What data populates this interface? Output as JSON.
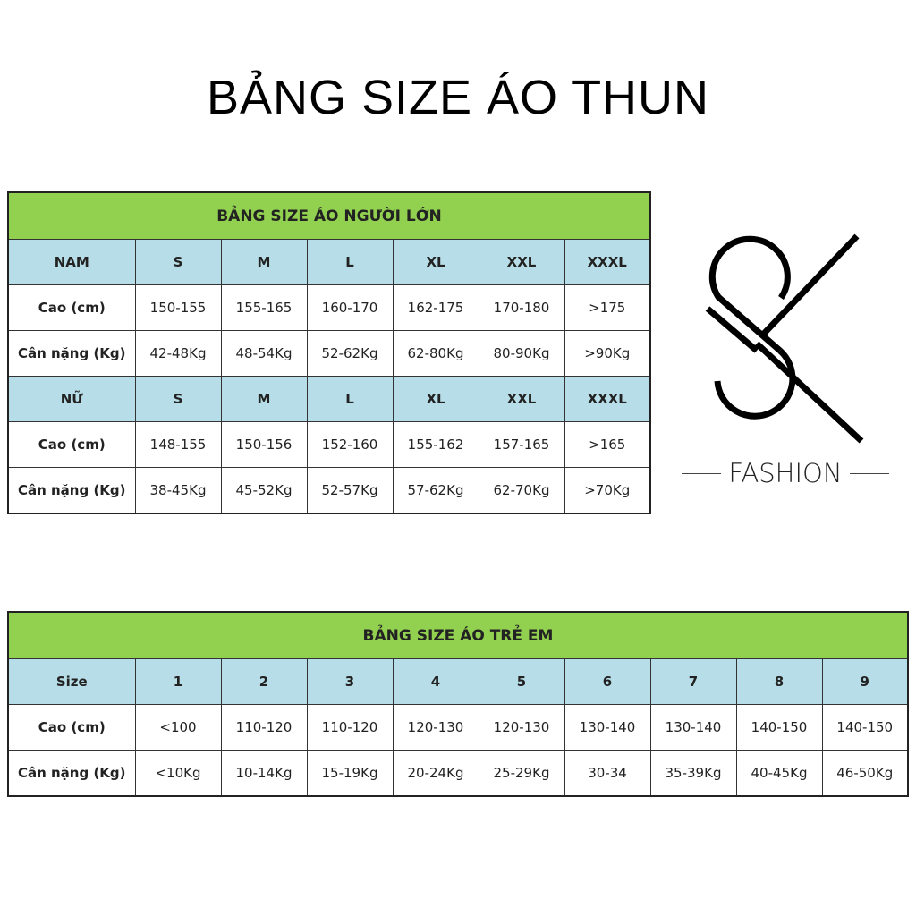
{
  "title": "BẢNG SIZE ÁO THUN",
  "adult": {
    "title": "BẢNG SIZE ÁO NGƯỜI LỚN",
    "sizes": [
      "S",
      "M",
      "L",
      "XL",
      "XXL",
      "XXXL"
    ],
    "nam": {
      "label": "NAM",
      "height_label": "Cao (cm)",
      "weight_label": "Cân nặng (Kg)",
      "height": [
        "150-155",
        "155-165",
        "160-170",
        "162-175",
        "170-180",
        ">175"
      ],
      "weight": [
        "42-48Kg",
        "48-54Kg",
        "52-62Kg",
        "62-80Kg",
        "80-90Kg",
        ">90Kg"
      ]
    },
    "nu": {
      "label": "NỮ",
      "height_label": "Cao (cm)",
      "weight_label": "Cân nặng (Kg)",
      "height": [
        "148-155",
        "150-156",
        "152-160",
        "155-162",
        "157-165",
        ">165"
      ],
      "weight": [
        "38-45Kg",
        "45-52Kg",
        "52-57Kg",
        "57-62Kg",
        "62-70Kg",
        ">70Kg"
      ]
    }
  },
  "kids": {
    "title": "BẢNG SIZE ÁO TRẺ EM",
    "size_label": "Size",
    "height_label": "Cao (cm)",
    "weight_label": "Cân nặng (Kg)",
    "sizes": [
      "1",
      "2",
      "3",
      "4",
      "5",
      "6",
      "7",
      "8",
      "9"
    ],
    "height": [
      "<100",
      "110-120",
      "110-120",
      "120-130",
      "120-130",
      "130-140",
      "130-140",
      "140-150",
      "140-150"
    ],
    "weight": [
      "<10Kg",
      "10-14Kg",
      "15-19Kg",
      "20-24Kg",
      "25-29Kg",
      "30-34",
      "35-39Kg",
      "40-45Kg",
      "46-50Kg"
    ]
  },
  "logo": {
    "brand": "FASHION",
    "monogram": "SK"
  },
  "colors": {
    "title_bar": "#92d050",
    "header_row": "#b7dee8"
  }
}
